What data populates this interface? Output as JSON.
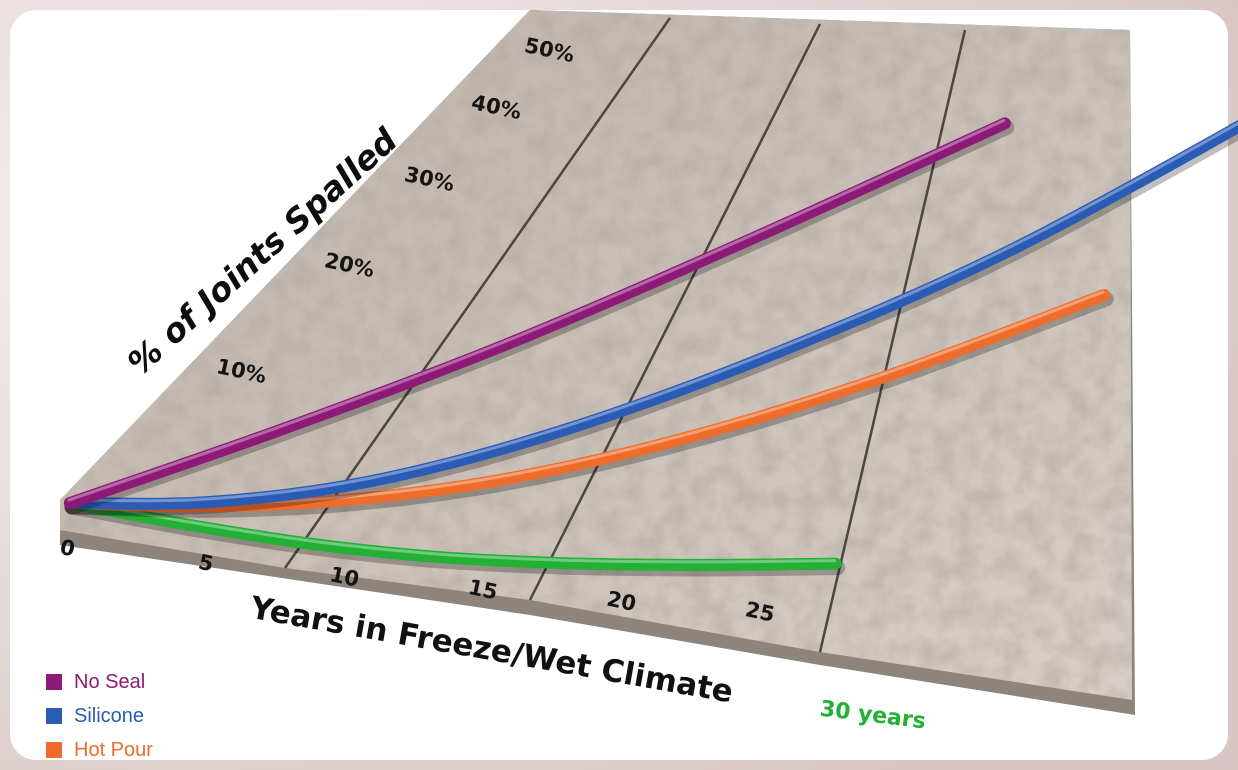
{
  "chart_data": {
    "type": "line",
    "title": "",
    "ylabel": "% of Joints Spalled",
    "xlabel": "Years in Freeze/Wet Climate",
    "x_ticks": [
      "0",
      "5",
      "10",
      "15",
      "20",
      "25"
    ],
    "x_end_label": "30 years",
    "y_ticks": [
      "10%",
      "20%",
      "30%",
      "40%",
      "50%"
    ],
    "xlim": [
      0,
      30
    ],
    "ylim": [
      0,
      50
    ],
    "legend_position": "bottom-left",
    "series": [
      {
        "name": "No Seal",
        "color": "#8e1a78",
        "x": [
          0,
          5,
          10,
          15,
          20
        ],
        "y": [
          0,
          9,
          19,
          31,
          44
        ]
      },
      {
        "name": "Silicone",
        "color": "#2a5bb5",
        "x": [
          0,
          5,
          10,
          15,
          20,
          25,
          30
        ],
        "y": [
          0,
          1,
          4,
          10,
          19,
          31,
          49
        ]
      },
      {
        "name": "Hot Pour",
        "color": "#ef6d2c",
        "x": [
          0,
          5,
          10,
          15,
          20,
          25,
          30
        ],
        "y": [
          0,
          0.5,
          2,
          5,
          10,
          17,
          26
        ]
      },
      {
        "color": "#22b035",
        "x": [
          0,
          5,
          10,
          15,
          20,
          25,
          30
        ],
        "y": [
          0,
          -1.5,
          -2.8,
          -3.6,
          -3.8,
          -3.6,
          -3.2
        ]
      }
    ]
  }
}
